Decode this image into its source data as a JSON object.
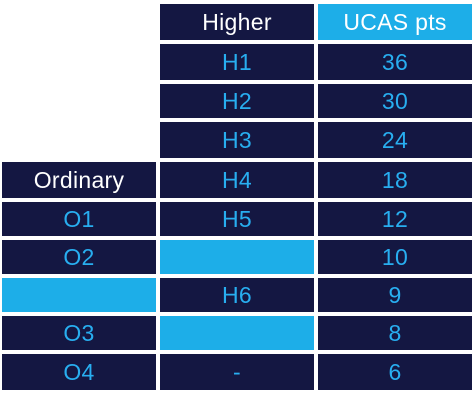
{
  "table": {
    "headers": {
      "ordinary": "Ordinary",
      "higher": "Higher",
      "ucas": "UCAS pts"
    },
    "rows": [
      {
        "ordinary": "",
        "higher": "H1",
        "points": "36"
      },
      {
        "ordinary": "",
        "higher": "H2",
        "points": "30"
      },
      {
        "ordinary": "",
        "higher": "H3",
        "points": "24"
      },
      {
        "ordinary": "",
        "higher": "H4",
        "points": "18"
      },
      {
        "ordinary": "O1",
        "higher": "H5",
        "points": "12"
      },
      {
        "ordinary": "O2",
        "higher": "",
        "points": "10"
      },
      {
        "ordinary": "",
        "higher": "H6",
        "points": "9"
      },
      {
        "ordinary": "O3",
        "higher": "",
        "points": "8"
      },
      {
        "ordinary": "O4",
        "higher": "-",
        "points": "6"
      }
    ]
  },
  "colors": {
    "dark_navy": "#141742",
    "light_blue": "#1daee8",
    "text_blue": "#28aef0",
    "text_white": "#ffffff"
  }
}
